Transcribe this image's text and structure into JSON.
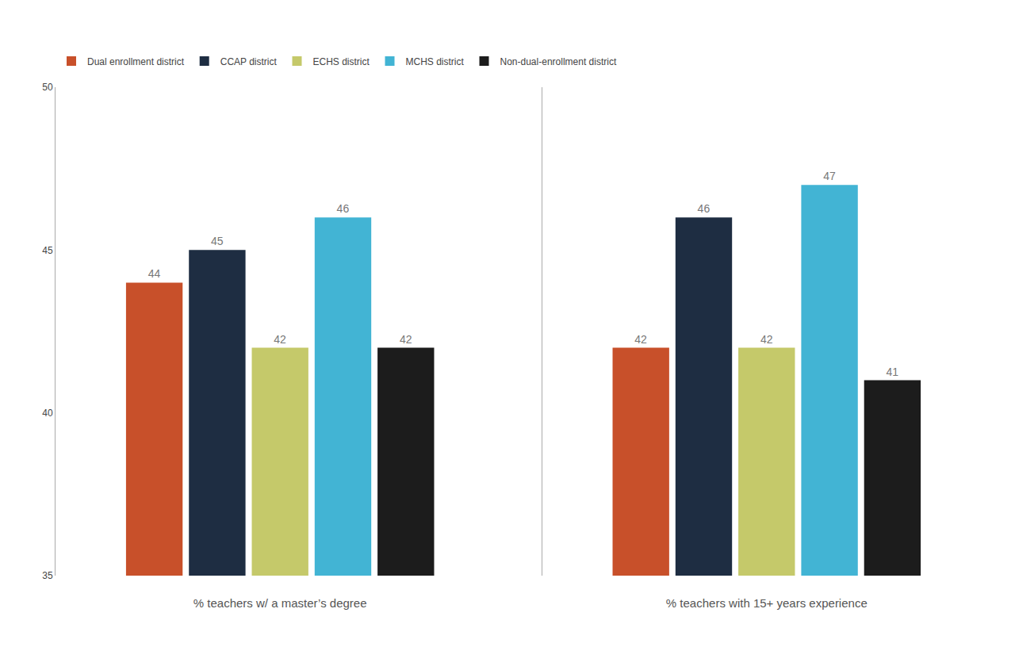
{
  "chart_data": [
    {
      "type": "bar",
      "xlabel": "% teachers w/ a master’s degree",
      "categories": [
        null
      ],
      "series": [
        {
          "name": "Dual enrollment district",
          "color": "#C8502A",
          "values": [
            44
          ]
        },
        {
          "name": "CCAP district",
          "color": "#1E2D42",
          "values": [
            45
          ]
        },
        {
          "name": "ECHS district",
          "color": "#C5C96A",
          "values": [
            42
          ]
        },
        {
          "name": "MCHS district",
          "color": "#42B4D4",
          "values": [
            46
          ]
        },
        {
          "name": "Non-dual-enrollment district",
          "color": "#1C1C1C",
          "values": [
            42
          ]
        }
      ],
      "ylim": [
        35,
        50
      ],
      "yticks": [
        35,
        40,
        45,
        50
      ],
      "grid": false,
      "data_labels": true,
      "tick_labels": "y",
      "legend": "top"
    },
    {
      "type": "bar",
      "xlabel": "% teachers with 15+ years experience",
      "categories": [
        null
      ],
      "series": [
        {
          "name": "Dual enrollment district",
          "color": "#C8502A",
          "values": [
            42
          ]
        },
        {
          "name": "CCAP district",
          "color": "#1E2D42",
          "values": [
            46
          ]
        },
        {
          "name": "ECHS district",
          "color": "#C5C96A",
          "values": [
            42
          ]
        },
        {
          "name": "MCHS district",
          "color": "#42B4D4",
          "values": [
            47
          ]
        },
        {
          "name": "Non-dual-enrollment district",
          "color": "#1C1C1C",
          "values": [
            41
          ]
        }
      ],
      "ylim": [
        35,
        50
      ],
      "yticks": [
        35,
        40,
        45,
        50
      ],
      "grid": false,
      "data_labels": true,
      "tick_labels": false
    }
  ]
}
